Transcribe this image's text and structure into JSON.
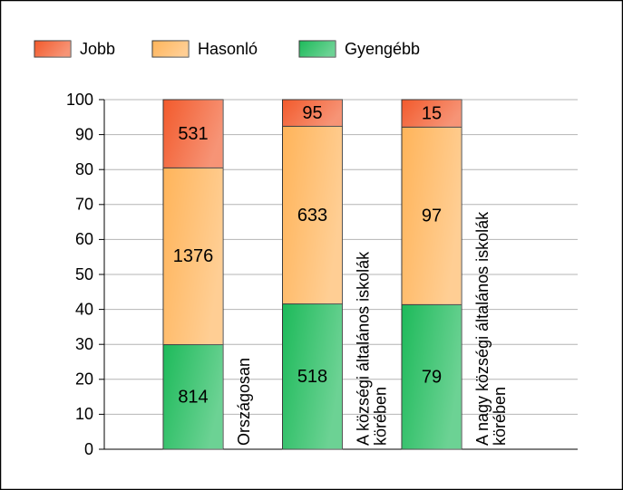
{
  "chart_data": {
    "type": "bar",
    "stacking": "percent",
    "categories": [
      "Országosan",
      "A községi általános iskolák körében",
      "A nagy községi általános iskolák körében"
    ],
    "series": [
      {
        "name": "Gyengébb",
        "color": "#1dba5a",
        "values": [
          814,
          518,
          79
        ]
      },
      {
        "name": "Hasonló",
        "color": "#ffb45a",
        "values": [
          1376,
          633,
          97
        ]
      },
      {
        "name": "Jobb",
        "color": "#f25a2c",
        "values": [
          531,
          95,
          15
        ]
      }
    ],
    "legend_order": [
      2,
      1,
      0
    ],
    "ylim": [
      0,
      100
    ],
    "yticks": [
      0,
      10,
      20,
      30,
      40,
      50,
      60,
      70,
      80,
      90,
      100
    ],
    "grid": true
  }
}
